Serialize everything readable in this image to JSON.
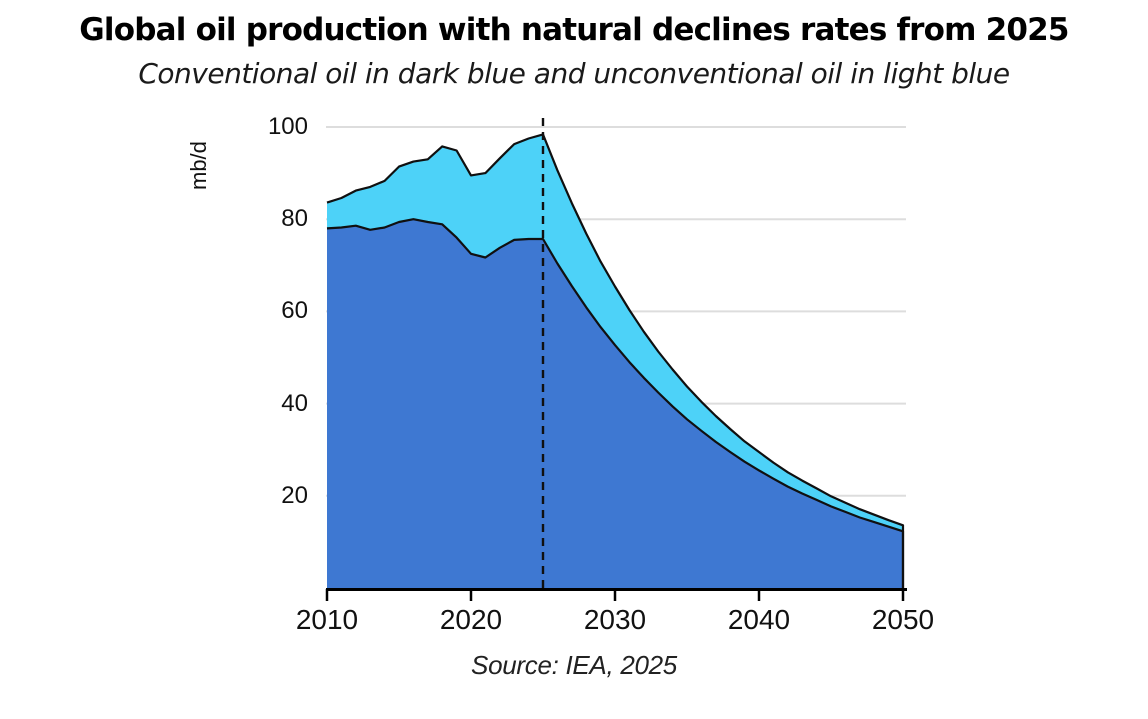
{
  "chart_data": {
    "type": "area",
    "stacked": true,
    "title": "Global oil production with natural declines rates from 2025",
    "subtitle": "Conventional oil in dark blue and unconventional oil in light blue",
    "ylabel": "mb/d",
    "xlabel": "",
    "source": "Source: IEA, 2025",
    "x_start": 2010,
    "x_end": 2050,
    "x_step": 1,
    "ylim": [
      0,
      100
    ],
    "xticks": [
      "2010",
      "2020",
      "2030",
      "2040",
      "2050"
    ],
    "yticks": [
      "20",
      "40",
      "60",
      "80",
      "100"
    ],
    "grid": "horizontal",
    "legend_position": "none",
    "annotations": {
      "dashed_vertical_line_year": 2025
    },
    "colors": {
      "conventional": "#3E78D2",
      "unconventional": "#4DD2F8",
      "outline": "#101010",
      "gridline": "#DDDDDD",
      "axis": "#000000"
    },
    "series": [
      {
        "name": "Conventional oil",
        "color": "#3E78D2",
        "values": [
          78.0,
          78.2,
          78.6,
          77.7,
          78.2,
          79.4,
          80.0,
          79.4,
          78.9,
          76.0,
          72.5,
          71.7,
          73.8,
          75.5,
          75.7,
          75.7,
          70.4,
          65.5,
          60.9,
          56.6,
          52.7,
          49.0,
          45.6,
          42.4,
          39.4,
          36.6,
          34.1,
          31.7,
          29.5,
          27.4,
          25.5,
          23.7,
          22.0,
          20.5,
          19.1,
          17.7,
          16.5,
          15.3,
          14.3,
          13.3,
          12.3
        ]
      },
      {
        "name": "Unconventional oil",
        "color": "#4DD2F8",
        "values": [
          5.6,
          6.4,
          7.6,
          9.3,
          10.1,
          12.0,
          12.5,
          13.6,
          16.9,
          18.9,
          17.0,
          18.3,
          19.4,
          20.8,
          21.8,
          22.7,
          20.2,
          18.0,
          16.0,
          14.2,
          12.7,
          11.3,
          10.0,
          8.9,
          8.0,
          7.1,
          6.3,
          5.6,
          5.0,
          4.4,
          4.0,
          3.5,
          3.1,
          2.8,
          2.5,
          2.2,
          2.0,
          1.8,
          1.6,
          1.4,
          1.3
        ]
      }
    ]
  }
}
